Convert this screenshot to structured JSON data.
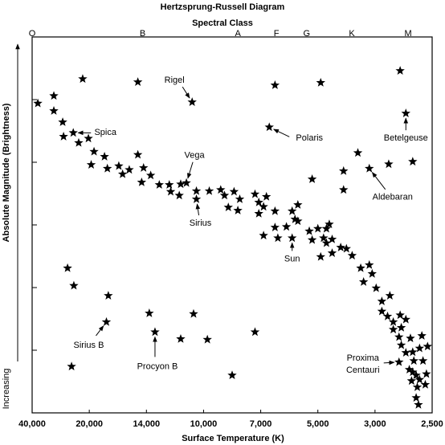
{
  "chart_data": {
    "type": "scatter",
    "title": "Hertzsprung-Russell Diagram",
    "top_axis_label": "Spectral Class",
    "x_label": "Surface Temperature (K)",
    "y_label": "Absolute Magnitude (Brightness)",
    "y_direction_label": "Increasing",
    "color": "#000000",
    "xlim": [
      40000,
      2500
    ],
    "xticks": [
      {
        "value": 40000,
        "label": "40,000"
      },
      {
        "value": 20000,
        "label": "20,000"
      },
      {
        "value": 14000,
        "label": "14,000"
      },
      {
        "value": 10000,
        "label": "10,000"
      },
      {
        "value": 7000,
        "label": "7,000"
      },
      {
        "value": 5000,
        "label": "5,000"
      },
      {
        "value": 3000,
        "label": "3,000"
      },
      {
        "value": 2500,
        "label": "2,500"
      }
    ],
    "ylim": [
      0,
      60
    ],
    "yticks": [
      10,
      20,
      30,
      40,
      50
    ],
    "spectral_classes": {
      "labels": [
        "O",
        "B",
        "A",
        "F",
        "G",
        "K",
        "M"
      ],
      "x": [
        40000,
        14400,
        8200,
        6450,
        5390,
        3810,
        2710
      ]
    },
    "x": [
      38000,
      32400,
      32400,
      22300,
      14900,
      10800,
      6500,
      4900,
      2780,
      2730,
      6700,
      29300,
      25600,
      29000,
      23700,
      20300,
      19500,
      19800,
      18400,
      18100,
      16900,
      16500,
      15800,
      14900,
      14500,
      14300,
      13700,
      13100,
      12400,
      12300,
      11600,
      11700,
      11200,
      10500,
      10500,
      9700,
      9100,
      8900,
      8400,
      8100,
      8700,
      8200,
      7300,
      7100,
      7100,
      6900,
      6800,
      6900,
      6500,
      6500,
      6400,
      6100,
      5900,
      5800,
      5900,
      5700,
      5700,
      5300,
      5200,
      5200,
      5000,
      4900,
      4800,
      4700,
      4700,
      4600,
      4500,
      4500,
      4200,
      4000,
      4100,
      4100,
      3600,
      3200,
      2880,
      2670,
      3800,
      3500,
      3200,
      3100,
      3400,
      2990,
      2940,
      2940,
      2870,
      2890,
      2840,
      2780,
      2840,
      2770,
      2730,
      2790,
      2690,
      2770,
      2670,
      2590,
      2610,
      2730,
      2540,
      2790,
      2660,
      2700,
      2580,
      2670,
      2640,
      2610,
      2680,
      2630,
      2640,
      2560,
      2620,
      2550,
      27600,
      25400,
      18000,
      18200,
      13800,
      13400,
      10700,
      9800,
      11600,
      7300,
      8500,
      26200
    ],
    "y": [
      49.4,
      50.6,
      48.2,
      53.3,
      52.8,
      49.6,
      52.3,
      52.7,
      54.6,
      47.8,
      45.6,
      46.4,
      44.7,
      44.1,
      43.1,
      43.8,
      41.7,
      39.6,
      40.9,
      39.0,
      39.4,
      38.1,
      38.8,
      41.2,
      36.8,
      39.1,
      37.9,
      36.4,
      36.4,
      35.3,
      36.5,
      34.7,
      36.7,
      34.1,
      35.4,
      35.4,
      35.6,
      34.7,
      35.3,
      34.1,
      32.8,
      32.3,
      34.9,
      33.6,
      31.8,
      32.9,
      34.5,
      28.3,
      32.2,
      29.6,
      27.9,
      29.7,
      32.2,
      30.9,
      27.9,
      33.2,
      30.6,
      29.0,
      27.6,
      37.3,
      29.4,
      24.9,
      27.9,
      29.4,
      27.1,
      30.1,
      25.5,
      27.7,
      26.4,
      26.2,
      35.6,
      38.6,
      41.5,
      39.0,
      39.7,
      40.1,
      25.1,
      23.1,
      23.6,
      22.2,
      20.9,
      19.9,
      17.8,
      16.2,
      18.7,
      15.4,
      14.5,
      15.6,
      13.3,
      13.6,
      14.9,
      12.1,
      11.9,
      10.8,
      9.7,
      12.3,
      10.3,
      9.6,
      10.6,
      8.1,
      8.3,
      6.9,
      8.3,
      6.5,
      6.0,
      5.3,
      5.1,
      4.1,
      2.4,
      4.5,
      1.3,
      6.2,
      23.1,
      20.3,
      18.7,
      14.5,
      15.9,
      12.9,
      15.8,
      11.7,
      11.8,
      12.9,
      6.0,
      7.4
    ],
    "annotations": [
      {
        "text": "Rigel",
        "x": 10800,
        "y": 49.6
      },
      {
        "text": "Polaris",
        "x": 6700,
        "y": 45.6
      },
      {
        "text": "Betelgeuse",
        "x": 2730,
        "y": 47.8
      },
      {
        "text": "Spica",
        "x": 25600,
        "y": 44.7
      },
      {
        "text": "Vega",
        "x": 11200,
        "y": 36.7
      },
      {
        "text": "Sirius",
        "x": 10500,
        "y": 34.1
      },
      {
        "text": "Aldebaran",
        "x": 3200,
        "y": 39.0
      },
      {
        "text": "Sun",
        "x": 5900,
        "y": 27.9
      },
      {
        "text": "Sirius B",
        "x": 18200,
        "y": 14.5
      },
      {
        "text": "Procyon B",
        "x": 13400,
        "y": 12.9
      },
      {
        "text": [
          "Proxima",
          "Centauri"
        ],
        "x": 2790,
        "y": 8.1
      }
    ]
  }
}
